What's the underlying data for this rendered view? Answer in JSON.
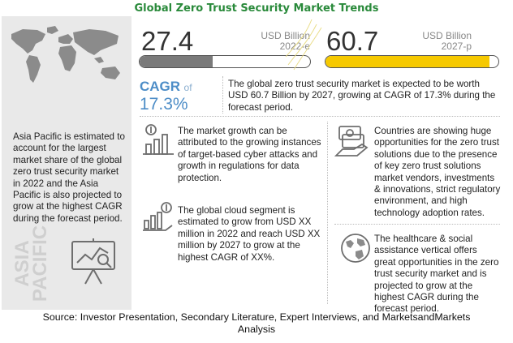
{
  "title": "Global Zero Trust Security Market Trends",
  "chart_data": {
    "type": "bar",
    "categories": [
      "2022-e",
      "2027-p"
    ],
    "values": [
      27.4,
      60.7
    ],
    "value_labels": [
      "27.4",
      "60.7"
    ],
    "unit": "USD Billion",
    "cagr_label": "CAGR",
    "cagr_of": "of",
    "cagr_value": "17.3%",
    "colors": [
      "#7a7a7a",
      "#f6c900"
    ]
  },
  "bars": [
    {
      "value": "27.4",
      "unit": "USD Billion",
      "year": "2022-e"
    },
    {
      "value": "60.7",
      "unit": "USD Billion",
      "year": "2027-p"
    }
  ],
  "growth_text": "The global zero trust security market is expected to be worth USD 60.7 Billion by 2027, growing at CAGR of 17.3% during the forecast period.",
  "left_panel": {
    "text": "Asia Pacific is estimated to account for the largest market share of the global zero trust security market in 2022 and the Asia Pacific is also projected to grow at the highest CAGR during the forecast period.",
    "vertical_label_1": "ASIA",
    "vertical_label_2": "PACIFIC"
  },
  "blocks": {
    "market_growth": "The market growth can be attributed to the growing instances of target-based cyber attacks and growth in regulations for data protection.",
    "cloud_segment": "The global cloud segment is estimated to grow from USD XX million in 2022 and reach USD XX million by 2027 to grow at the highest CAGR of XX%.",
    "countries": "Countries are showing huge opportunities for the zero trust solutions due to the presence of key zero trust solutions market vendors, investments & innovations, strict regulatory environment, and high technology adoption rates.",
    "healthcare": "The healthcare & social assistance vertical offers great opportunities in the zero trust security market and is projected to grow at the highest CAGR during the forecast period."
  },
  "source_line1": "Source: Investor Presentation, Secondary Literature, Expert Interviews, and MarketsandMarkets",
  "source_line2": "Analysis",
  "icons": [
    "world-map-icon",
    "presentation-chart-icon",
    "dollar-bar-chart-icon",
    "hand-bar-chart-icon",
    "money-hand-icon",
    "globe-icon"
  ]
}
